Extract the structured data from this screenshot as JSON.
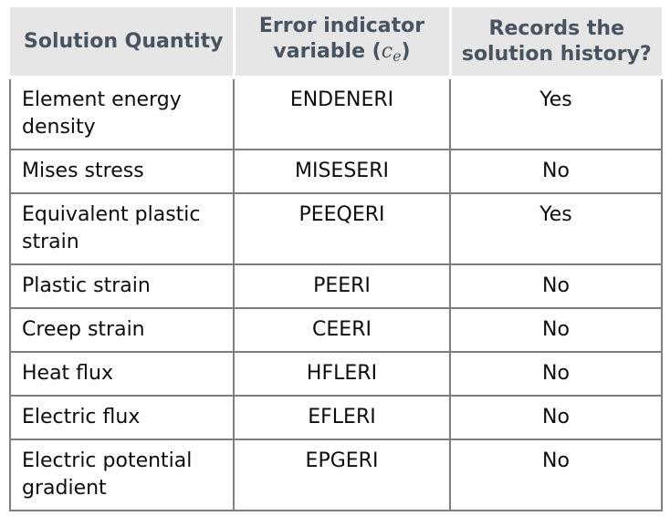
{
  "table": {
    "header": {
      "col1": {
        "label": "Solution Quantity"
      },
      "col2": {
        "line1": "Error indicator",
        "line2_prefix": "variable (",
        "math_var": "c",
        "math_sub": "e",
        "line2_suffix": ")"
      },
      "col3": {
        "line1": "Records the",
        "line2": "solution history?"
      }
    },
    "rows": [
      {
        "quantity": "Element energy density",
        "variable": "ENDENERI",
        "records": "Yes"
      },
      {
        "quantity": "Mises stress",
        "variable": "MISESERI",
        "records": "No"
      },
      {
        "quantity": "Equivalent plastic strain",
        "variable": "PEEQERI",
        "records": "Yes"
      },
      {
        "quantity": "Plastic strain",
        "variable": "PEERI",
        "records": "No"
      },
      {
        "quantity": "Creep strain",
        "variable": "CEERI",
        "records": "No"
      },
      {
        "quantity": "Heat flux",
        "variable": "HFLERI",
        "records": "No"
      },
      {
        "quantity": "Electric flux",
        "variable": "EFLERI",
        "records": "No"
      },
      {
        "quantity": "Electric potential gradient",
        "variable": "EPGERI",
        "records": "No"
      }
    ],
    "colors": {
      "header_background": "#e6e6e6",
      "header_text": "#475460",
      "body_text": "#0d0d0d",
      "border": "#7f7f7f"
    }
  }
}
